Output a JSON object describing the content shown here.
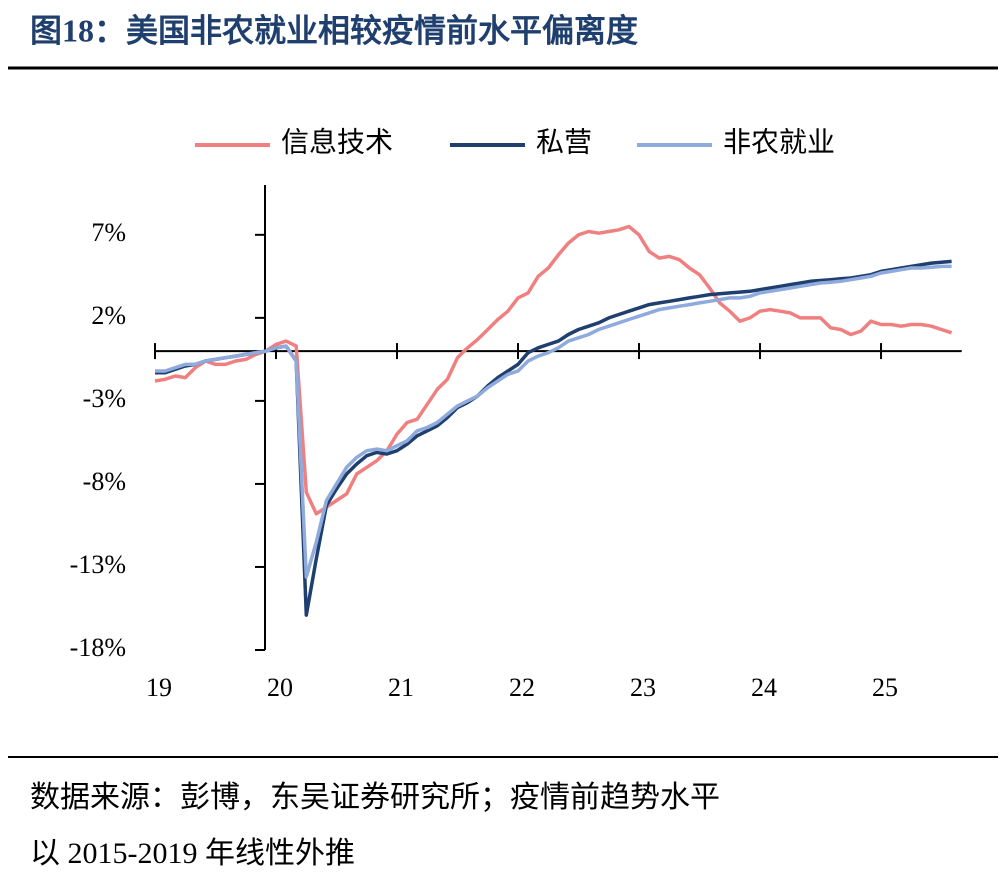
{
  "chart_data": {
    "type": "line",
    "title": "图18：美国非农就业相较疫情前水平偏离度",
    "notes": [
      "数据来源：彭博，东吴证券研究所；疫情前趋势水平",
      "以 2015-2019 年线性外推"
    ],
    "x": [
      0,
      1,
      2,
      3,
      4,
      5,
      6,
      7,
      8,
      9,
      10,
      11,
      12,
      13,
      14,
      15,
      16,
      17,
      18,
      19,
      20,
      21,
      22,
      23,
      24,
      25,
      26,
      27,
      28,
      29,
      30,
      31,
      32,
      33,
      34,
      35,
      36,
      37,
      38,
      39,
      40,
      41,
      42,
      43,
      44,
      45,
      46,
      47,
      48,
      49,
      50,
      51,
      52,
      53,
      54,
      55,
      56,
      57,
      58,
      59,
      60,
      61,
      62,
      63,
      64,
      65,
      66,
      67,
      68,
      69,
      70,
      71,
      72,
      73,
      74,
      75,
      76,
      77,
      78,
      79
    ],
    "xlim": [
      0,
      80
    ],
    "xticks": [
      {
        "value": 0,
        "label": "19"
      },
      {
        "value": 12,
        "label": "20"
      },
      {
        "value": 24,
        "label": "21"
      },
      {
        "value": 36,
        "label": "22"
      },
      {
        "value": 48,
        "label": "23"
      },
      {
        "value": 60,
        "label": "24"
      },
      {
        "value": 72,
        "label": "25"
      }
    ],
    "ylim": [
      -18,
      10
    ],
    "yticks": [
      {
        "value": 7,
        "label": "7%"
      },
      {
        "value": 2,
        "label": "2%"
      },
      {
        "value": -3,
        "label": "-3%"
      },
      {
        "value": -8,
        "label": "-8%"
      },
      {
        "value": -13,
        "label": "-13%"
      },
      {
        "value": -18,
        "label": "-18%"
      }
    ],
    "series": [
      {
        "name": "信息技术",
        "color": "#f08080",
        "values": [
          -1.8,
          -1.7,
          -1.5,
          -1.6,
          -1.0,
          -0.6,
          -0.8,
          -0.8,
          -0.6,
          -0.5,
          -0.2,
          0,
          0.4,
          0.6,
          0.3,
          -8.5,
          -9.8,
          -9.4,
          -9.0,
          -8.6,
          -7.4,
          -7.0,
          -6.6,
          -6.0,
          -5.0,
          -4.3,
          -4.1,
          -3.2,
          -2.3,
          -1.7,
          -0.4,
          0.2,
          0.7,
          1.3,
          1.9,
          2.4,
          3.2,
          3.5,
          4.5,
          5.0,
          5.8,
          6.5,
          7.0,
          7.2,
          7.1,
          7.2,
          7.3,
          7.5,
          7.0,
          6.0,
          5.6,
          5.7,
          5.5,
          5.0,
          4.6,
          3.8,
          2.9,
          2.4,
          1.8,
          2.0,
          2.4,
          2.5,
          2.4,
          2.3,
          2.0,
          2.0,
          2.0,
          1.4,
          1.3,
          1.0,
          1.2,
          1.8,
          1.6,
          1.6,
          1.5,
          1.6,
          1.6,
          1.5,
          1.3,
          1.1
        ]
      },
      {
        "name": "私营",
        "color": "#1f3f6e",
        "values": [
          -1.3,
          -1.3,
          -1.1,
          -0.9,
          -0.8,
          -0.6,
          -0.5,
          -0.4,
          -0.3,
          -0.2,
          -0.1,
          0,
          0.2,
          0.3,
          -0.6,
          -15.9,
          -12.5,
          -9.3,
          -8.3,
          -7.4,
          -6.8,
          -6.3,
          -6.1,
          -6.2,
          -6.0,
          -5.6,
          -5.1,
          -4.8,
          -4.5,
          -4.0,
          -3.4,
          -3.1,
          -2.7,
          -2.1,
          -1.6,
          -1.2,
          -0.8,
          -0.1,
          0.2,
          0.4,
          0.6,
          1.0,
          1.3,
          1.5,
          1.7,
          2.0,
          2.2,
          2.4,
          2.6,
          2.8,
          2.9,
          3.0,
          3.1,
          3.2,
          3.3,
          3.4,
          3.45,
          3.5,
          3.55,
          3.6,
          3.7,
          3.8,
          3.9,
          4.0,
          4.1,
          4.2,
          4.25,
          4.3,
          4.35,
          4.4,
          4.5,
          4.6,
          4.8,
          4.9,
          5.0,
          5.1,
          5.2,
          5.3,
          5.35,
          5.4
        ]
      },
      {
        "name": "非农就业",
        "color": "#8faadc",
        "values": [
          -1.2,
          -1.2,
          -1.0,
          -0.8,
          -0.8,
          -0.6,
          -0.5,
          -0.4,
          -0.3,
          -0.2,
          -0.1,
          0,
          0.2,
          0.3,
          -0.6,
          -13.6,
          -11.5,
          -9.0,
          -8.0,
          -7.0,
          -6.4,
          -6.0,
          -5.9,
          -6.0,
          -5.7,
          -5.4,
          -4.8,
          -4.6,
          -4.3,
          -3.8,
          -3.3,
          -3.0,
          -2.7,
          -2.2,
          -1.8,
          -1.4,
          -1.2,
          -0.6,
          -0.3,
          -0.1,
          0.2,
          0.6,
          0.8,
          1.0,
          1.3,
          1.5,
          1.7,
          1.9,
          2.1,
          2.3,
          2.5,
          2.6,
          2.7,
          2.8,
          2.9,
          3.0,
          3.1,
          3.2,
          3.2,
          3.3,
          3.5,
          3.6,
          3.7,
          3.8,
          3.9,
          4.0,
          4.1,
          4.15,
          4.2,
          4.3,
          4.4,
          4.5,
          4.7,
          4.8,
          4.9,
          5.0,
          5.0,
          5.05,
          5.1,
          5.1
        ]
      }
    ]
  }
}
